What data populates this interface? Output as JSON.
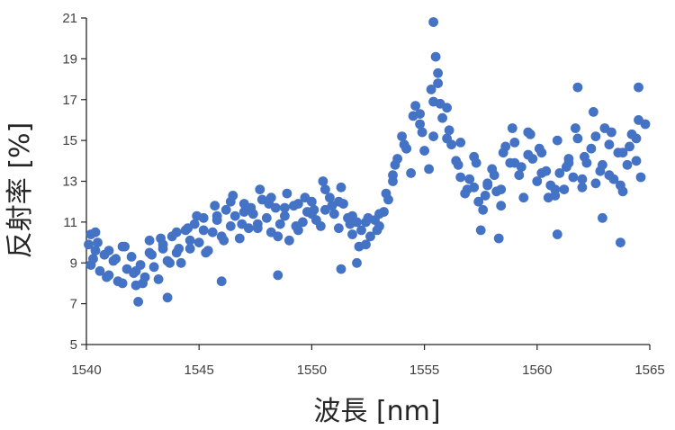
{
  "chart_data": {
    "type": "scatter",
    "title": "",
    "xlabel": "波長 [nm]",
    "ylabel": "反射率 [%]",
    "xlim": [
      1540,
      1565
    ],
    "ylim": [
      5,
      21
    ],
    "xticks": [
      "1540",
      "1545",
      "1550",
      "1555",
      "1560",
      "1565"
    ],
    "yticks": [
      "5",
      "7",
      "9",
      "11",
      "13",
      "15",
      "17",
      "19",
      "21"
    ],
    "grid": false,
    "legend": "none",
    "marker_color": "#4472C4",
    "series": [
      {
        "x": [
          1540.1,
          1540.2,
          1540.3,
          1540.4,
          1540.6,
          1540.8,
          1541.0,
          1541.2,
          1541.4,
          1541.6,
          1541.8,
          1542.0,
          1542.2,
          1542.4,
          1542.6,
          1542.8,
          1543.0,
          1543.2,
          1543.4,
          1543.6,
          1543.8,
          1544.0,
          1544.2,
          1544.4,
          1544.6,
          1544.8,
          1545.0,
          1545.2,
          1545.4,
          1545.6,
          1545.8,
          1546.0,
          1546.2,
          1546.4,
          1546.6,
          1546.8,
          1547.0,
          1547.2,
          1547.4,
          1547.6,
          1547.8,
          1548.0,
          1548.2,
          1548.4,
          1548.6,
          1548.8,
          1549.0,
          1549.2,
          1549.4,
          1549.6,
          1549.8,
          1550.0,
          1550.2,
          1550.4,
          1550.6,
          1550.8,
          1551.0,
          1551.2,
          1551.4,
          1551.6,
          1551.8,
          1552.0,
          1552.2,
          1552.4,
          1552.6,
          1552.8,
          1553.0,
          1553.2,
          1553.4,
          1553.6,
          1553.8,
          1554.0,
          1554.2,
          1554.4,
          1554.6,
          1554.8,
          1555.0,
          1555.2,
          1555.4,
          1555.6,
          1555.8,
          1556.0,
          1556.2,
          1556.4,
          1556.6,
          1556.8,
          1557.0,
          1557.2,
          1557.4,
          1557.6,
          1557.8,
          1558.0,
          1558.2,
          1558.4,
          1558.6,
          1558.8,
          1559.0,
          1559.2,
          1559.4,
          1559.6,
          1559.8,
          1560.0,
          1560.2,
          1560.4,
          1560.6,
          1560.8,
          1561.0,
          1561.2,
          1561.4,
          1561.6,
          1561.8,
          1562.0,
          1562.2,
          1562.4,
          1562.6,
          1562.8,
          1563.0,
          1563.2,
          1563.4,
          1563.6,
          1563.8,
          1564.0,
          1564.2,
          1564.4,
          1564.6,
          1564.8,
          1540.2,
          1540.5,
          1540.9,
          1541.3,
          1541.7,
          1542.1,
          1542.5,
          1542.9,
          1543.3,
          1543.7,
          1544.1,
          1544.5,
          1544.9,
          1545.3,
          1545.7,
          1546.1,
          1546.5,
          1546.9,
          1547.3,
          1547.7,
          1548.1,
          1548.5,
          1548.9,
          1549.3,
          1549.7,
          1550.1,
          1550.5,
          1550.9,
          1551.3,
          1551.7,
          1552.1,
          1552.5,
          1552.9,
          1553.3,
          1553.7,
          1554.1,
          1554.5,
          1554.9,
          1555.3,
          1555.7,
          1556.1,
          1556.5,
          1556.9,
          1557.3,
          1557.7,
          1558.1,
          1558.5,
          1558.9,
          1559.3,
          1559.7,
          1560.1,
          1560.5,
          1560.9,
          1561.3,
          1561.7,
          1562.1,
          1562.5,
          1562.9,
          1563.3,
          1563.7,
          1564.1,
          1564.5,
          1540.4,
          1541.0,
          1541.6,
          1542.2,
          1542.8,
          1543.4,
          1544.0,
          1544.6,
          1545.2,
          1545.8,
          1546.4,
          1547.0,
          1547.6,
          1548.2,
          1548.8,
          1549.4,
          1550.0,
          1550.6,
          1551.2,
          1551.8,
          1552.4,
          1553.0,
          1553.6,
          1554.2,
          1554.8,
          1555.4,
          1556.0,
          1556.6,
          1557.2,
          1557.8,
          1558.4,
          1559.0,
          1559.6,
          1560.2,
          1560.8,
          1561.4,
          1562.0,
          1562.6,
          1563.2,
          1563.8,
          1564.4,
          1542.3,
          1543.6,
          1546.0,
          1548.5,
          1551.3,
          1552.0,
          1555.4,
          1555.5,
          1555.6,
          1561.8,
          1563.7,
          1564.5,
          1558.3,
          1560.9,
          1562.9,
          1557.5
        ],
        "y": [
          9.9,
          10.4,
          9.2,
          9.6,
          8.6,
          9.4,
          8.4,
          9.1,
          8.1,
          9.8,
          8.7,
          9.3,
          7.9,
          8.9,
          8.3,
          10.1,
          8.8,
          8.2,
          9.9,
          9.1,
          10.3,
          9.5,
          9.0,
          10.6,
          9.7,
          10.9,
          10.0,
          11.2,
          9.6,
          10.5,
          11.1,
          10.3,
          11.6,
          10.8,
          11.3,
          10.2,
          11.9,
          10.7,
          11.4,
          10.9,
          12.1,
          11.2,
          10.5,
          11.7,
          10.9,
          11.3,
          10.1,
          11.8,
          10.6,
          11.0,
          11.5,
          12.0,
          11.1,
          10.8,
          11.6,
          12.2,
          11.4,
          10.7,
          11.9,
          11.2,
          10.4,
          11.0,
          10.6,
          9.9,
          10.3,
          11.1,
          10.8,
          11.5,
          12.1,
          13.3,
          14.1,
          15.2,
          14.6,
          13.4,
          16.7,
          15.8,
          14.5,
          13.6,
          16.9,
          17.8,
          16.1,
          15.1,
          14.8,
          14.0,
          13.2,
          12.4,
          13.1,
          12.7,
          12.0,
          11.6,
          12.9,
          13.6,
          12.5,
          11.8,
          14.7,
          13.9,
          14.9,
          13.3,
          12.2,
          15.4,
          14.1,
          13.0,
          14.4,
          13.5,
          12.8,
          12.3,
          13.4,
          12.6,
          14.1,
          13.2,
          15.1,
          12.7,
          13.9,
          14.6,
          12.9,
          13.5,
          15.6,
          14.8,
          13.1,
          14.4,
          12.5,
          13.8,
          15.3,
          14.0,
          13.2,
          15.8,
          8.9,
          10.0,
          8.3,
          9.2,
          9.8,
          8.5,
          8.0,
          9.4,
          10.2,
          9.0,
          9.7,
          10.7,
          11.3,
          9.5,
          11.8,
          10.1,
          12.3,
          10.9,
          11.7,
          12.6,
          11.9,
          10.3,
          12.4,
          10.8,
          12.2,
          11.6,
          13.0,
          11.8,
          12.7,
          10.9,
          9.8,
          11.2,
          10.6,
          12.4,
          13.8,
          14.8,
          16.2,
          15.4,
          17.5,
          16.8,
          15.5,
          13.8,
          12.6,
          13.9,
          12.3,
          13.3,
          14.4,
          15.6,
          13.7,
          15.3,
          14.6,
          12.2,
          15.0,
          13.7,
          15.6,
          14.2,
          16.4,
          13.8,
          15.4,
          12.8,
          14.7,
          16.0,
          10.5,
          9.6,
          8.0,
          8.6,
          9.5,
          9.7,
          10.5,
          10.1,
          10.6,
          11.3,
          12.0,
          11.5,
          10.7,
          12.2,
          11.7,
          11.9,
          11.4,
          12.6,
          12.0,
          11.3,
          11.0,
          11.4,
          13.0,
          14.6,
          16.3,
          15.2,
          16.6,
          14.9,
          14.2,
          12.8,
          12.6,
          13.9,
          14.3,
          13.4,
          12.6,
          13.9,
          13.1,
          15.2,
          13.3,
          14.4,
          15.1,
          7.1,
          7.3,
          8.1,
          8.4,
          8.7,
          9.0,
          20.8,
          19.1,
          18.3,
          17.6,
          10.0,
          17.6,
          10.2,
          10.4,
          11.2,
          10.6
        ]
      }
    ]
  }
}
